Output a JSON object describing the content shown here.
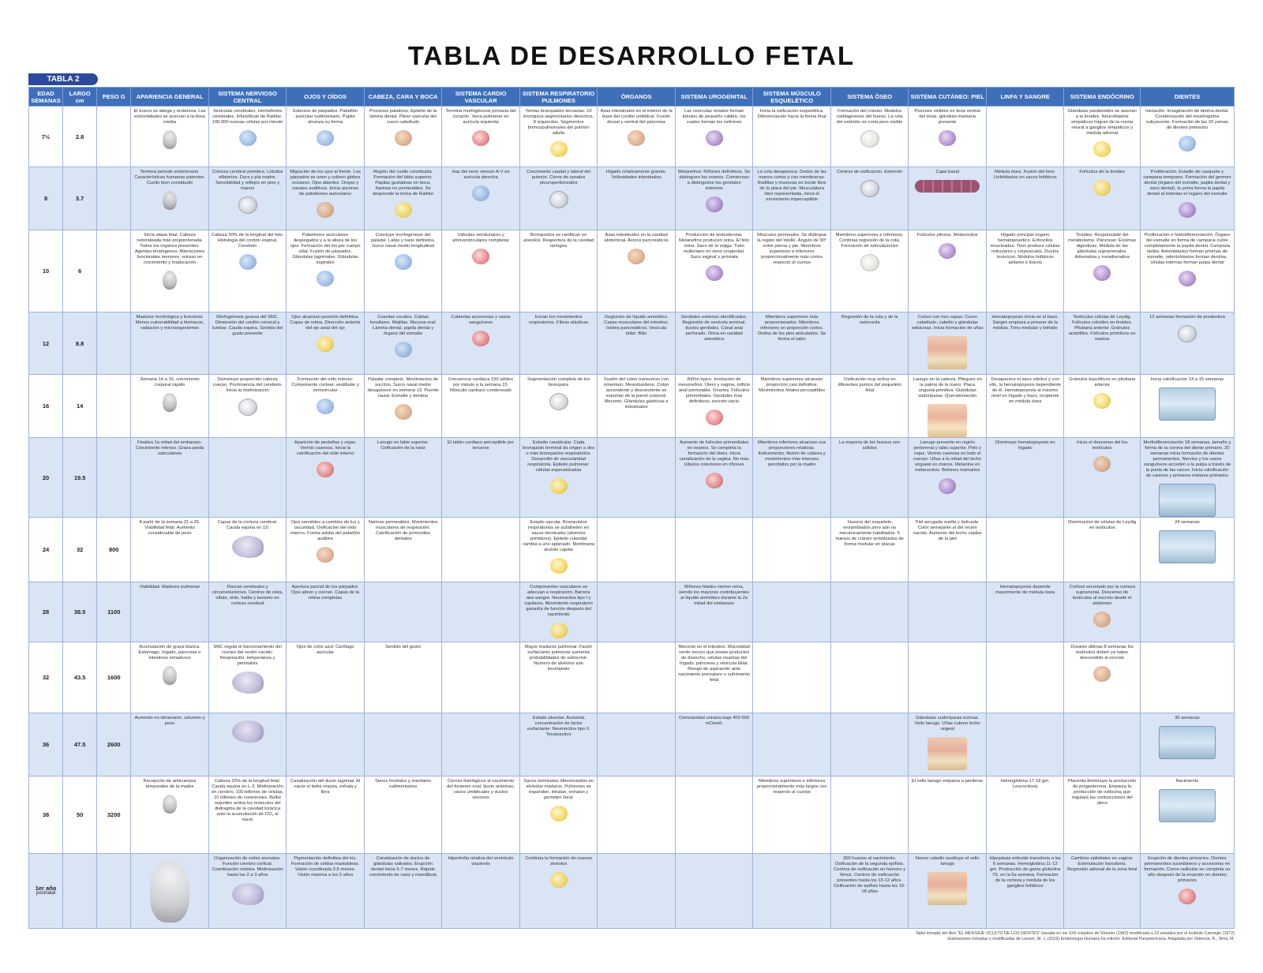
{
  "title": "TABLA DE DESARROLLO FETAL",
  "table_label": "TABLA 2",
  "headers": {
    "edad": [
      "EDAD",
      "SEMANAS"
    ],
    "largo": [
      "LARGO",
      "cm"
    ],
    "peso": "PESO g",
    "apariencia": "APARIENCIA GENERAL",
    "snc": "SISTEMA NERVIOSO CENTRAL",
    "ojos": "OJOS Y OÍDOS",
    "cabeza": "CABEZA, CARA Y BOCA",
    "cardio": "SISTEMA CARDIO VASCULAR",
    "resp": "SISTEMA RESPIRATORIO PULMONES",
    "organos": "ÓRGANOS",
    "uro": "SISTEMA UROGENITAL",
    "musculo": "SISTEMA MÚSCULO ESQUELÉTICO",
    "oseo": "SISTEMA ÓSEO",
    "piel": "SISTEMA CUTÁNEO: PIEL",
    "linfa": "LINFA Y SANGRE",
    "endocrino": "SISTEMA ENDÓCRINO",
    "dientes": "DIENTES"
  },
  "rows": [
    {
      "edad": "7½",
      "edad_sub": "",
      "largo": "2.8",
      "peso": "",
      "apariencia": "El tronco se alarga y endereza. Las extremidades se acercan a la línea media",
      "snc": "Vesículas cerebrales. Hemisferios cerebrales. Infundíbulo de Rathke. 100,000 nuevas células por minuto",
      "ojos": "Esbozos de párpados. Pabellón auricular rudimentario. Pupila alcanza su forma",
      "cabeza": "Procesos palatinos. Epitelio de la lámina dental. Plexo vascular del cuero cabelludo",
      "cardio": "Termina morfogénesis primaria del corazón. Vena pulmonar en aurícula izquierda",
      "resp": "Yemas bronquiales terciarias. 10 bronquios segmentarios derechos, 8 izquierdos. Segmentos broncopulmonares del pulmón adulto",
      "organos": "Asas intestinales en el interior de la base del cordón umbilical. Fusión dorsal y ventral del páncreas",
      "uro": "Las vesículas renales forman túbulos de pequeño calibre, los cuales forman los nefrones",
      "musculo": "Inicia la osificación esquelética. Diferenciación hacia la forma final",
      "oseo": "Formación del cráneo. Modelos cartilaginosos del hueso. La cola del embrión es corta pero visible",
      "piel": "Pezones visibles en área ventral del tórax. glándula mamaria presente",
      "linfa": "",
      "endocrino": "Glándulas paratiroides se asocian a la tiroides. Neuroblastos simpáticos migran de la cresta neural a ganglios simpáticos y médula adrenal",
      "dientes": "Iniciación. Invaginación de lámina dental. Condensación del mesénquima subyacente. Formación de las 20 yemas de dientes primarios"
    },
    {
      "edad": "8",
      "edad_sub": "",
      "largo": "3.7",
      "peso": "",
      "apariencia": "Termina periodo embrionario. Características humanas patentes. Cuello bien constituido",
      "snc": "Corteza cerebral primitiva. Lóbulos olfatorios. Dura y pía madre. Sensibilidad y reflejos en pies y manos",
      "ojos": "Migración de los ojos al frente. Los párpados se unen y cubren globos oculares. Ojos abiertos. Orejas y canales auditivos. Inicia ascenso de pabellones auriculares",
      "cabeza": "Región del cuello constituida. Formación del labio superior. Papilas gustativas en boca. Narinas no permeables. Se desprende la bolsa de Rathke",
      "cardio": "Haz del seno venoso A-V en aurícula derecha",
      "resp": "Crecimiento caudal y lateral del pulmón. Cierre de canales pleuroperitoneales",
      "organos": "Hígado relativamente grande. Vellosidades intestinales",
      "uro": "Metanefros: Riñones definitivos. Se distinguen los ovarios. Comienzan a distinguirse los genitales externos",
      "musculo": "La cola desaparece. Dedos de las manos cortos y con membranas. Rodillas y muescas en borde libre de la placa del pie. Musculatura bien representada, inicia el movimiento imperceptible",
      "oseo": "Centros de osificación. Esternón",
      "piel": "Capa basal",
      "linfa": "Médula ósea. Fusión del timo. Linfoblastos en sacos linfáticos",
      "endocrino": "Folículos de la tiroides",
      "dientes": "Proliferación. Estadio de casquete y campana temprano. Formación del germen dental (órgano del esmalte, papila dental y saco dental), la yema forma la papila dental al indentar el órgano del esmalte"
    },
    {
      "edad": "10",
      "edad_sub": "",
      "largo": "6",
      "peso": "",
      "apariencia": "Inicia etapa fetal. Cabeza redondeada más proporcionada. Todos los órganos presentes. Agentes teratógenos: Alteraciones funcionales menores, retraso en crecimiento y maduración",
      "snc": "Cabeza 50% de la longitud del feto. Histología del cordón espinal. Cerebelo",
      "ojos": "Pabellones auriculares despegados y a la altura de los ojos. Formación del iris por cuerpo ciliar. Fusión de párpados. Glándulas lagrimales. Glándulas espirales",
      "cabeza": "Concluye morfogénesis del paladar. Labio y nariz definidos. Surco nasal medio longitudinal",
      "cardio": "Válvulas semilunares y atrioventriculares completas",
      "resp": "Bronquiolos se ramifican en alvéolos. Reapertura de la cavidad laríngea",
      "organos": "Asas intestinales en la cavidad abdominal. Acinos pancreáticos",
      "uro": "Producción de testosterona. Metanefros producen orina. El feto orina. Saco de la vejiga. Tubo mulleriano en seno urogenital. Saco vaginal y próstata",
      "musculo": "Músculos perineales. Se distingue la región del tobillo. Ángulo de 90° entre pierna y pie. Miembros superiores e inferiores proporcionalmente más cortos respecto al cuerpo",
      "oseo": "Miembros superiores e inferiores. Continúa regresión de la cola. Formación de articulaciones",
      "piel": "Folículos pilosos. Melanocitos",
      "linfa": "Hígado principal órgano hematopoyético. Eritrocitos enucleados. Timo produce células reticulares y corpúsculos. Ductos torácicos. Nódulos linfáticos axilares e iliacos",
      "endocrino": "Tiroides: Responsable del metabolismo. Páncreas: Enzimas digestivas. Médula de las glándulas suprarrenales. Adrenalina y noradrenalina",
      "dientes": "Proliferación e histodiferenciación. Órgano del esmalte en forma de campana cubre completamente la papila dental. Campana tardía: Ameloblastos forman prismas de esmalte, odontoblastos forman dentina, células internas forman pulpa dental"
    },
    {
      "edad": "12",
      "edad_sub": "",
      "largo": "8.8",
      "peso": "",
      "apariencia": "Madurez morfológica y funcional. Menos vulnerabilidad a fármacos, radiación y microorganismos",
      "snc": "Morfogénesis gruesa del SNC. Dimensión del cordón cervical y lumbar. Cauda equina. Sentido del gusto presente",
      "ojos": "Ojos alcanzan posición definitiva. Capas de retina. Dirección anterior del eje axial del ojo",
      "cabeza": "Cuerdas vocales. Criptas tonsilares. Mejillas. Mucosa oral: Lámina dental, papila dental y órgano del esmalte",
      "cardio": "Cubiertas accesorias y vasos sanguíneos",
      "resp": "Inician los movimientos respiratorios. Fibras elásticas",
      "organos": "Deglución de líquido amniótico. Capas musculares del intestino. Islotes pancreáticos. Vesícula biliar: Bilis",
      "uro": "Genitales externos identificados. Regresión de vesícula seminal, ductos genitales. Canal anal perforado. Orina en cavidad amniótica",
      "musculo": "Miembros superiores más proporcionados. Miembros inferiores en proporción cortos. Dedos de los pies articulados. Se forma el talón",
      "oseo": "Regresión de la cola y de la notocorda",
      "piel": "Corion con tres capas: Cuero cabelludo, cabello y glándulas sebáceas. Inicia formación de uñas",
      "linfa": "Hematopoyesis inicia en el bazo. Sangre empieza a proveer de la médula. Timo medular y linfoide",
      "endocrino": "Testículos células de Leydig. Folículos coloides en tiroides. Pituitaria anterior. Gránulos acidófilos. Folículos primitivos en ovarios",
      "dientes": "12 semanas formación de predentina"
    },
    {
      "edad": "16",
      "edad_sub": "",
      "largo": "14",
      "peso": "",
      "apariencia": "Semana 14 a 16, crecimiento corporal rápido",
      "snc": "Disminuye proporción cabeza cuerpo. Prominencia del cerebelo. Inicia la mielinización",
      "ojos": "Formación del oído interno: Componente coclear, vestibular y semicircular",
      "cabeza": "Paladar completo. Movimientos de succión. Surco nasal medio desaparece en semana 13. Puente nasal. Esmalte y dentina",
      "cardio": "Frecuencia cardiaca 150 latidos por minuto a la semana 15. Músculo cardiaco condensado",
      "resp": "Segmentación completa de los bronquios",
      "organos": "Fusión del colon transverso con omentum. Mesoduodeno. Colon ascendente y descendente se soportan de la pared corporal. Meconio. Glándulas gástricas e intestinales",
      "uro": "Riñón típico. Involución de mesonefros. Útero y vagina, orificio anal permeable. Ovarios: Folículos primordiales. Genitales más definitivos, escroto vacío",
      "musculo": "Miembros superiores alcanzan proporción casi definitiva. Movimientos fetales perceptibles",
      "oseo": "Osificación muy activa en diferentes puntos del esqueleto fetal",
      "piel": "Lanugo en la cabeza. Pliegues en la palma de la mano. Placa ungueal primitiva. Glándulas sudoríparas. Queratinización",
      "linfa": "Desaparece el saco vitelino y con ello, la hematopoyesis dependiente de él. Hematopoyesis al máximo nivel en hígado y bazo, incipiente en médula ósea",
      "endocrino": "Gránulos basofílicos en pituitaria anterior",
      "dientes": "Inicia calcificación 14 a 16 semanas"
    },
    {
      "edad": "20",
      "edad_sub": "",
      "largo": "19.5",
      "peso": "",
      "apariencia": "Finaliza 1a mitad del embarazo. Crecimiento intenso. Grasa parda subcutánea",
      "snc": "",
      "ojos": "Aparición de pestañas y cejas. Vermix caseosa. Inicia la calcificación del oído interno",
      "cabeza": "Lanugo en labio superior. Osificación de la nariz",
      "cardio": "El latido cardiaco perceptible por terceros",
      "resp": "Estadio canalicular. Cada bronquiolo terminal da origen a dos o más bronquiolos respiratorios. Desarrollo de vascularidad respiratoria. Epitelio pulmonar: células especializadas",
      "organos": "",
      "uro": "Aumento de folículos primordiales en ovarios. Se completa la formación del útero. Inicia canalización de la vagina. No más túbulos colectores en riñones",
      "musculo": "Miembros inferiores alcanzan sus proporciones relativas. Estiramiento, flexión de cabeza y movimientos más intensos percibidos por la madre",
      "oseo": "La mayoría de los huesos son sólidos",
      "piel": "Lanugo presente en región periorenal y labio superior. Pelo y cejas. Vermix caseosa en todo el cuerpo. Uñas a la mitad del lecho ungueal en manos. Melanina en melanocitos. Botones mamarios",
      "linfa": "Disminuye hematopoyesis en hígado",
      "endocrino": "Inicia el descenso del los testículos",
      "dientes": "Morfodiferenciación 18 semanas, tamaño y forma de la corona del diente primario. 20 semanas inicia formación de dientes permanentes. Nervios y los vasos sanguíneos acceden a la pulpa a través de la punta de las raíces. Inicia calcificación de caninos y primeros molares primarios"
    },
    {
      "edad": "24",
      "edad_sub": "",
      "largo": "32",
      "peso": "800",
      "apariencia": "A partir de la semana 21 a 25. Viabilidad fetal. Aumento considerable de peso",
      "snc": "Capas de la corteza cerebral. Cauda equina en 1S",
      "ojos": "Ojos sensibles a cambios de luz y oscuridad. Osificación del oído interno. Forma adulta del pabellón auditivo",
      "cabeza": "Narinas permeables. Movimientos musculares de respiración. Calcificación de primordios dentales",
      "cardio": "",
      "resp": "Estado sacular. Bronquiolos respiratorios se subdividen en sacos terminales (alvéolos primitivos). Epitelio cuboidal cambia a uno aplanado. Membrana alvéolo capilar",
      "organos": "",
      "uro": "",
      "musculo": "",
      "oseo": "Huesos del esqueleto ensamblados pero aún no mecánicamente habilitados. 5 huesos de cráneo sintetizados de forma modular en placas",
      "piel": "Piel arrugada suelta y delicada. Color semejante al del recién nacido. Aumento del lecho capilar de la piel",
      "linfa": "",
      "endocrino": "Disminución de células de Leydig en testículos",
      "dientes": "24 semanas"
    },
    {
      "edad": "28",
      "edad_sub": "",
      "largo": "38.5",
      "peso": "1100",
      "apariencia": "Viabilidad. Madurez pulmonar",
      "snc": "Fisuras cerebrales y circunvoluciones. Centros de vista, olfato, oído, habla y taxismo en corteza cerebral",
      "ojos": "Apertura parcial de los párpados. Ojos abren y cierran. Capas de la retina completas",
      "cabeza": "",
      "cardio": "",
      "resp": "Componentes vasculares se adecuan a respiración. Barrera aire-sangre. Neumocitos tipo I y capilares. Movimiento respiratorio garantía de función después del nacimiento",
      "organos": "",
      "uro": "Riñones fetales vierten orina, siendo los mayores contribuyentes al líquido amniótico durante la 2a mitad del embarazo",
      "musculo": "",
      "oseo": "",
      "piel": "",
      "linfa": "Hematopoyesis depende mayormente de médula ósea",
      "endocrino": "Cortisol secretado por la corteza suprarrenal. Descenso de testículos al escroto desde el abdomen",
      "dientes": ""
    },
    {
      "edad": "32",
      "edad_sub": "",
      "largo": "43.5",
      "peso": "1600",
      "apariencia": "Acumulación de grasa blanca. Estómago, hígado, páncreas e intestinos inmaduros",
      "snc": "SNC regula el funcionamiento del cuerpo del recién nacido: Respiración, temperatura y peristalsis",
      "ojos": "Ojos de color azul. Cartílago auricular",
      "cabeza": "Sentido del gusto",
      "cardio": "",
      "resp": "Mayor madurez pulmonar. Factor surfactante pulmonar aumenta probabilidades de sobrevivir. Número de alvéolos aún incompleto",
      "organos": "",
      "uro": "Meconio en el intestino. Mucosidad verde oscuro que posee productos de desecho, células muertas del hígado, páncreas y vesícula biliar. Riesgo de aspiración ante nacimiento prematuro o sufrimiento fetal",
      "musculo": "",
      "oseo": "",
      "piel": "",
      "linfa": "",
      "endocrino": "Durante últimas 8 semanas los testículos deben ya haber descendido al escroto",
      "dientes": ""
    },
    {
      "edad": "36",
      "edad_sub": "",
      "largo": "47.5",
      "peso": "2600",
      "apariencia": "Aumento en dimensión, volumen y peso",
      "snc": "",
      "ojos": "",
      "cabeza": "",
      "cardio": "",
      "resp": "Estado alveolar. Aumenta concentración de factor surfactante: Neumocitos tipo II. Tensioactivo",
      "organos": "",
      "uro": "Osmolaridad urinaria baja 400-500 mOsm/L",
      "musculo": "",
      "oseo": "",
      "piel": "Glándulas sudoríparas ecrinas. Vello lanugo. Uñas cubren lecho ungeal",
      "linfa": "",
      "endocrino": "",
      "dientes": "36 semanas"
    },
    {
      "edad": "38",
      "edad_sub": "",
      "largo": "50",
      "peso": "3200",
      "apariencia": "Recepción de anticuerpos temporales de la madre",
      "snc": "Cabeza 25% de la longitud fetal. Cauda equina en L-3. Mielinización en cerebro. 100 billones de células, 10 trillones de conexiones. Bulbo raquídeo activa los músculos del diafragma de la cavidad torácica ante la acumulación de CO₂ al nacer",
      "ojos": "Canalización del ducto lagrimal. Al nacer el bebé respira, exhala y llora",
      "cabeza": "Senos frontales y maxilares rudimentarios",
      "cardio": "Cierres fisiológicos al nacimiento del foramen oval, ducto arterioso, vasos umbilicales y ductos venosos",
      "resp": "Sacos terminales diferenciados en alvéolos maduros. Pulmones se expanden, inhalan, exhalan y permiten llorar",
      "organos": "",
      "uro": "",
      "musculo": "Miembros superiores e inferiores proporcionalmente más largos con respecto al cuerpo",
      "oseo": "",
      "piel": "El vello lanugo empieza a perderse",
      "linfa": "Hemoglobina 17-18 gm. Leucocitosis",
      "endocrino": "Placenta disminuye la producción de progesterona. Empieza la producción de oxitocina que regulará las contracciones del útero",
      "dientes": "Nacimiento"
    },
    {
      "edad": "1er año",
      "edad_sub": "postnatal",
      "largo": "",
      "peso": "",
      "apariencia": "",
      "snc": "Organización de redes axonales. Función cerebro cortical. Coordinación motora. Mielinización hasta los 2 a 3 años",
      "ojos": "Pigmentación definitiva del iris. Formación de celdas mastoideas. Visión coordinada 3-5 meses. Visión máxima a los 5 años",
      "cabeza": "Canalización de ductos de glándulas salivales. Erupción dental inicia 5-7 meses. Rápido crecimiento de nariz y mandíbula",
      "cardio": "Hipertrofia relativa del ventrículo izquierdo",
      "resp": "Continúa la formación de nuevos alvéolos",
      "organos": "",
      "uro": "",
      "musculo": "",
      "oseo": "300 huesos al nacimiento. Osificación de la segunda epífisis. Centros de osificación en húmero y fémur. Centros de osificación presentes hasta los 10-12 años. Osificación de epífisis hasta los 16-18 años",
      "piel": "Nuevo cabello sustituye el vello lanugo",
      "linfa": "Hipoplasia eritroide transitoria a las 6 semanas. Hemoglobina 11-12 gm. Producción de gama globulina 7S, en la 6a semana. Formación de la corteza y médula de los ganglios linfáticos",
      "endocrino": "Cambios epiteliales en vagina: Estimulación transitoria. Regresión adrenal de la zona fetal",
      "dientes": "Erupción de dientes primarios. Dientes permanentes sucedáneos y accesorios en formación. Cierre radicular se completa un año después de la erupción en dientes primarios"
    }
  ],
  "source": [
    "Tabla tomada del libro \"EL MENSAJE OCULTO DE LOS DIENTES\" basada en los XXII estadios de Streeter (1942) modificada a 23 estadios por el Instituto Carnegie (1972)",
    "Ilustraciones tomadas y modificadas de Larsen, W. J. (2019) Embriología Humana 6a edición. Editorial Panamericana. Adaptada por Valencia, R., Silva, M."
  ],
  "colors": {
    "header": "#3f6fb8",
    "badge": "#2b4a9a",
    "row_alt": "#d9e4f4"
  }
}
